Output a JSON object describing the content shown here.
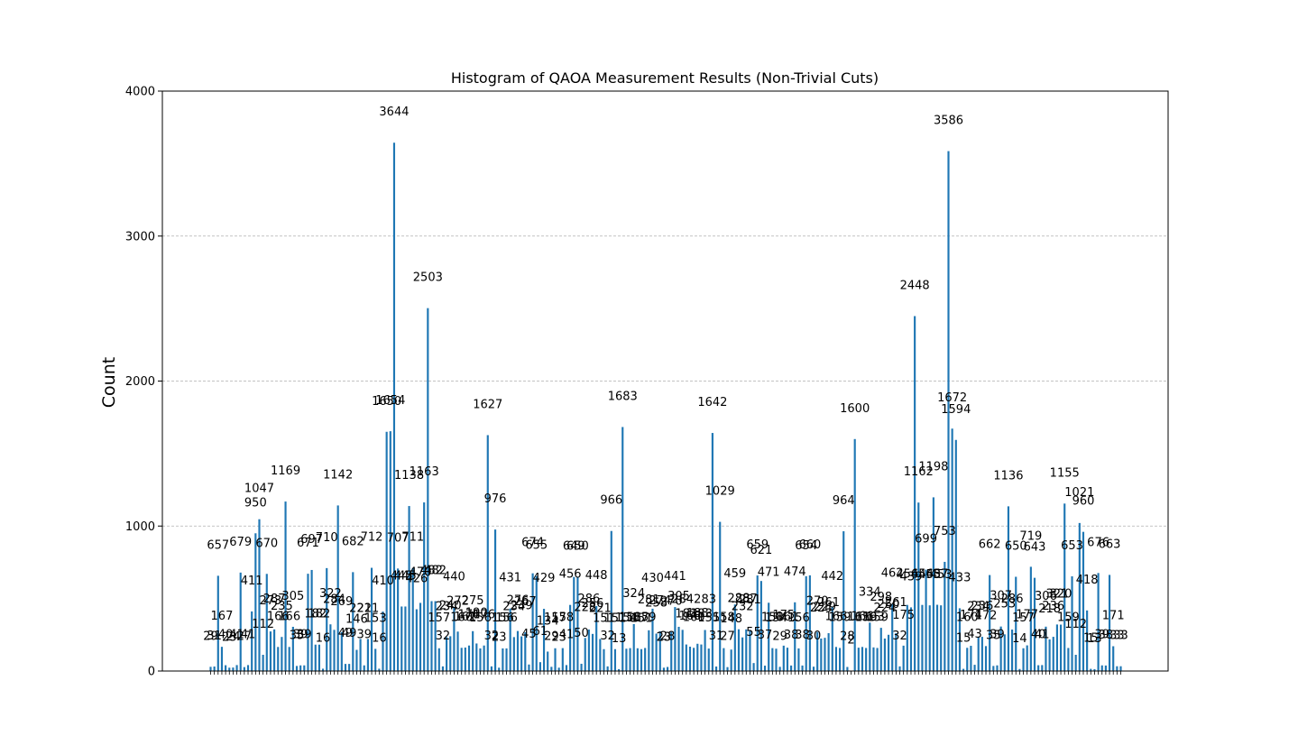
{
  "chart_data": {
    "type": "bar",
    "title": "Histogram of QAOA Measurement Results (Non-Trivial Cuts)",
    "xlabel": "",
    "ylabel": "Count",
    "ylim": [
      0,
      4000
    ],
    "yticks": [
      0,
      1000,
      2000,
      3000,
      4000
    ],
    "grid": "y, dashed",
    "bar_color": "#1f77b4",
    "values": [
      29,
      31,
      657,
      167,
      40,
      23,
      24,
      41,
      679,
      27,
      41,
      411,
      950,
      1047,
      112,
      670,
      273,
      287,
      166,
      235,
      1169,
      166,
      305,
      35,
      39,
      39,
      671,
      697,
      182,
      182,
      16,
      710,
      322,
      284,
      1142,
      269,
      49,
      49,
      682,
      146,
      221,
      39,
      221,
      712,
      153,
      16,
      410,
      1650,
      1654,
      3644,
      707,
      445,
      445,
      1138,
      711,
      426,
      470,
      1163,
      2503,
      482,
      482,
      157,
      32,
      234,
      240,
      440,
      272,
      160,
      162,
      176,
      275,
      190,
      156,
      176,
      1627,
      32,
      976,
      23,
      156,
      156,
      431,
      234,
      276,
      239,
      267,
      45,
      674,
      655,
      61,
      429,
      134,
      29,
      157,
      23,
      158,
      41,
      456,
      649,
      650,
      50,
      228,
      286,
      256,
      448,
      221,
      151,
      32,
      966,
      151,
      13,
      1683,
      154,
      158,
      324,
      157,
      151,
      159,
      281,
      430,
      258,
      274,
      23,
      28,
      270,
      441,
      305,
      284,
      183,
      168,
      160,
      188,
      183,
      283,
      155,
      1642,
      31,
      1029,
      158,
      27,
      148,
      459,
      288,
      232,
      287,
      281,
      55,
      659,
      621,
      37,
      471,
      158,
      154,
      29,
      175,
      161,
      38,
      474,
      156,
      38,
      654,
      660,
      30,
      270,
      224,
      229,
      261,
      442,
      166,
      159,
      964,
      28,
      2,
      1600,
      161,
      166,
      159,
      334,
      163,
      159,
      298,
      224,
      250,
      462,
      261,
      32,
      175,
      456,
      439,
      2448,
      1162,
      456,
      699,
      453,
      1198,
      457,
      453,
      753,
      3586,
      1672,
      1594,
      433,
      15,
      160,
      174,
      43,
      234,
      236,
      172,
      662,
      35,
      39,
      307,
      253,
      1136,
      286,
      650,
      14,
      157,
      177,
      719,
      643,
      40,
      41,
      306,
      218,
      236,
      321,
      320,
      1155,
      159,
      653,
      112,
      1021,
      960,
      418,
      15,
      13,
      676,
      39,
      38,
      663,
      171,
      33,
      33
    ],
    "value_labels": [
      "29",
      "31",
      "657",
      "167",
      "40",
      "23",
      "24",
      "41",
      "679",
      "27",
      "41",
      "411",
      "950",
      "1047",
      "112",
      "670",
      "273",
      "287",
      "166",
      "235",
      "1169",
      "166",
      "305",
      "35",
      "39",
      "39",
      "671",
      "697",
      "182",
      "182",
      "16",
      "710",
      "322",
      "284",
      "1142",
      "269",
      "49",
      "49",
      "682",
      "146",
      "221",
      "39",
      "221",
      "712",
      "153",
      "16",
      "410",
      "1650",
      "1654",
      "3644",
      "707",
      "445",
      "445",
      "1138",
      "711",
      "426",
      "470",
      "1163",
      "2503",
      "482",
      "482",
      "157",
      "32",
      "234",
      "240",
      "440",
      "272",
      "160",
      "162",
      "176",
      "275",
      "190",
      "156",
      "176",
      "1627",
      "32",
      "976",
      "23",
      "156",
      "156",
      "431",
      "234",
      "276",
      "239",
      "267",
      "45",
      "674",
      "655",
      "61",
      "429",
      "134",
      "29",
      "157",
      "23",
      "158",
      "41",
      "456",
      "649",
      "650",
      "50",
      "228",
      "286",
      "256",
      "448",
      "221",
      "151",
      "32",
      "966",
      "151",
      "13",
      "1683",
      "154",
      "158",
      "324",
      "157",
      "151",
      "159",
      "281",
      "430",
      "258",
      "274",
      "23",
      "28",
      "270",
      "441",
      "305",
      "284",
      "183",
      "168",
      "160",
      "188",
      "183",
      "283",
      "155",
      "1642",
      "31",
      "1029",
      "158",
      "27",
      "148",
      "459",
      "288",
      "232",
      "287",
      "281",
      "55",
      "659",
      "621",
      "37",
      "471",
      "158",
      "154",
      "29",
      "175",
      "161",
      "38",
      "474",
      "156",
      "38",
      "654",
      "660",
      "30",
      "270",
      "224",
      "229",
      "261",
      "442",
      "166",
      "159",
      "964",
      "28",
      "2",
      "1600",
      "161",
      "166",
      "159",
      "334",
      "163",
      "159",
      "298",
      "224",
      "250",
      "462",
      "261",
      "32",
      "175",
      "456",
      "439",
      "2448",
      "1162",
      "456",
      "699",
      "453",
      "1198",
      "457",
      "453",
      "753",
      "3586",
      "1672",
      "1594",
      "433",
      "15",
      "160",
      "174",
      "43",
      "234",
      "236",
      "172",
      "662",
      "35",
      "39",
      "307",
      "253",
      "1136",
      "286",
      "650",
      "14",
      "157",
      "177",
      "719",
      "643",
      "40",
      "41",
      "306",
      "218",
      "236",
      "321",
      "320",
      "1155",
      "159",
      "653",
      "112",
      "1021",
      "960",
      "418",
      "15",
      "13",
      "676",
      "39",
      "38",
      "663",
      "171",
      "33",
      "33"
    ]
  }
}
